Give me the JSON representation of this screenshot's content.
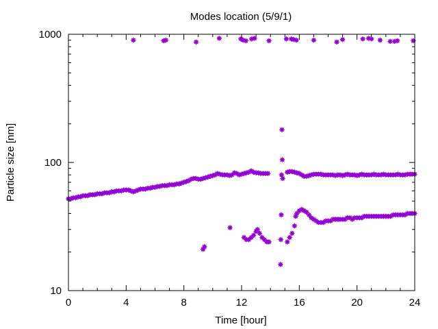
{
  "chart_data": {
    "type": "scatter",
    "title": "Modes location (5/9/1)",
    "xlabel": "Time [hour]",
    "ylabel": "Particle size [nm]",
    "xlim": [
      0,
      24
    ],
    "ylim": [
      10,
      1000
    ],
    "yscale": "log",
    "x_ticks": [
      "0",
      "4",
      "8",
      "12",
      "16",
      "20",
      "24"
    ],
    "y_ticks": [
      "10",
      "100",
      "1000"
    ],
    "grid": false,
    "legend": "none",
    "marker_color": "#9400d3",
    "series": [
      {
        "points": [
          [
            0.0,
            52
          ],
          [
            0.17,
            52
          ],
          [
            0.33,
            53
          ],
          [
            0.5,
            53
          ],
          [
            0.67,
            54
          ],
          [
            0.83,
            54
          ],
          [
            1.0,
            55
          ],
          [
            1.17,
            55
          ],
          [
            1.33,
            55
          ],
          [
            1.5,
            56
          ],
          [
            1.67,
            56
          ],
          [
            1.83,
            56
          ],
          [
            2.0,
            57
          ],
          [
            2.17,
            57
          ],
          [
            2.33,
            57
          ],
          [
            2.5,
            58
          ],
          [
            2.67,
            58
          ],
          [
            2.83,
            58
          ],
          [
            3.0,
            59
          ],
          [
            3.17,
            59
          ],
          [
            3.33,
            60
          ],
          [
            3.5,
            60
          ],
          [
            3.67,
            60
          ],
          [
            3.83,
            61
          ],
          [
            4.0,
            61
          ],
          [
            4.17,
            61
          ],
          [
            4.33,
            60
          ],
          [
            4.5,
            59
          ],
          [
            4.67,
            60
          ],
          [
            4.83,
            61
          ],
          [
            5.0,
            62
          ],
          [
            5.17,
            62
          ],
          [
            5.33,
            62
          ],
          [
            5.5,
            63
          ],
          [
            5.67,
            63
          ],
          [
            5.83,
            64
          ],
          [
            6.0,
            64
          ],
          [
            6.17,
            65
          ],
          [
            6.33,
            65
          ],
          [
            6.5,
            66
          ],
          [
            6.67,
            66
          ],
          [
            6.83,
            66
          ],
          [
            7.0,
            67
          ],
          [
            7.17,
            67
          ],
          [
            7.33,
            67
          ],
          [
            7.5,
            68
          ],
          [
            7.67,
            68
          ],
          [
            7.83,
            69
          ],
          [
            8.0,
            70
          ],
          [
            8.17,
            71
          ],
          [
            8.33,
            72
          ],
          [
            8.5,
            74
          ],
          [
            8.67,
            75
          ],
          [
            8.83,
            75
          ],
          [
            9.0,
            74
          ],
          [
            9.17,
            74
          ],
          [
            9.33,
            75
          ],
          [
            9.5,
            76
          ],
          [
            9.67,
            77
          ],
          [
            9.83,
            78
          ],
          [
            10.0,
            79
          ],
          [
            10.17,
            80
          ],
          [
            10.33,
            82
          ],
          [
            10.5,
            81
          ],
          [
            10.67,
            80
          ],
          [
            10.83,
            80
          ],
          [
            11.0,
            80
          ],
          [
            11.17,
            79
          ],
          [
            11.33,
            80
          ],
          [
            11.5,
            83
          ],
          [
            11.67,
            82
          ],
          [
            11.83,
            80
          ],
          [
            12.0,
            81
          ],
          [
            12.17,
            82
          ],
          [
            12.33,
            83
          ],
          [
            12.5,
            84
          ],
          [
            12.67,
            86
          ],
          [
            12.83,
            84
          ],
          [
            13.0,
            83
          ],
          [
            13.17,
            83
          ],
          [
            13.33,
            82
          ],
          [
            13.5,
            82
          ],
          [
            13.67,
            82
          ],
          [
            13.83,
            82
          ],
          [
            14.77,
            80
          ],
          [
            14.85,
            75
          ],
          [
            15.17,
            84
          ],
          [
            15.33,
            85
          ],
          [
            15.5,
            85
          ],
          [
            15.67,
            84
          ],
          [
            15.83,
            83
          ],
          [
            16.0,
            82
          ],
          [
            16.17,
            80
          ],
          [
            16.33,
            78
          ],
          [
            16.5,
            78
          ],
          [
            16.67,
            79
          ],
          [
            16.83,
            80
          ],
          [
            17.0,
            81
          ],
          [
            17.17,
            81
          ],
          [
            17.33,
            81
          ],
          [
            17.5,
            81
          ],
          [
            17.67,
            80
          ],
          [
            17.83,
            80
          ],
          [
            18.0,
            80
          ],
          [
            18.17,
            80
          ],
          [
            18.33,
            80
          ],
          [
            18.5,
            79
          ],
          [
            18.67,
            80
          ],
          [
            18.83,
            80
          ],
          [
            19.0,
            79
          ],
          [
            19.17,
            80
          ],
          [
            19.33,
            81
          ],
          [
            19.5,
            80
          ],
          [
            19.67,
            80
          ],
          [
            19.83,
            80
          ],
          [
            20.0,
            79
          ],
          [
            20.17,
            80
          ],
          [
            20.33,
            81
          ],
          [
            20.5,
            80
          ],
          [
            20.67,
            80
          ],
          [
            20.83,
            80
          ],
          [
            21.0,
            80
          ],
          [
            21.17,
            81
          ],
          [
            21.33,
            80
          ],
          [
            21.5,
            80
          ],
          [
            21.67,
            80
          ],
          [
            21.83,
            81
          ],
          [
            22.0,
            80
          ],
          [
            22.17,
            80
          ],
          [
            22.33,
            80
          ],
          [
            22.5,
            80
          ],
          [
            22.67,
            80
          ],
          [
            22.83,
            81
          ],
          [
            23.0,
            80
          ],
          [
            23.17,
            80
          ],
          [
            23.33,
            80
          ],
          [
            23.5,
            81
          ],
          [
            23.67,
            81
          ],
          [
            23.83,
            81
          ],
          [
            24.0,
            81
          ],
          [
            9.33,
            21
          ],
          [
            9.43,
            22
          ],
          [
            11.2,
            31
          ],
          [
            12.17,
            26
          ],
          [
            12.33,
            25
          ],
          [
            12.5,
            25
          ],
          [
            12.67,
            26
          ],
          [
            12.83,
            27
          ],
          [
            13.0,
            29
          ],
          [
            13.1,
            30
          ],
          [
            13.25,
            28
          ],
          [
            13.42,
            26
          ],
          [
            13.58,
            25
          ],
          [
            13.75,
            24
          ],
          [
            13.9,
            24
          ],
          [
            14.7,
            16
          ],
          [
            14.72,
            25
          ],
          [
            14.75,
            39
          ],
          [
            14.8,
            180
          ],
          [
            14.82,
            105
          ],
          [
            15.17,
            24
          ],
          [
            15.33,
            26
          ],
          [
            15.5,
            28
          ],
          [
            15.67,
            32
          ],
          [
            15.75,
            38
          ],
          [
            15.83,
            40
          ],
          [
            16.0,
            42
          ],
          [
            16.17,
            43
          ],
          [
            16.33,
            42
          ],
          [
            16.5,
            41
          ],
          [
            16.67,
            39
          ],
          [
            16.83,
            37
          ],
          [
            17.0,
            36
          ],
          [
            17.17,
            35
          ],
          [
            17.33,
            34
          ],
          [
            17.5,
            34
          ],
          [
            17.67,
            34
          ],
          [
            17.83,
            35
          ],
          [
            18.0,
            35
          ],
          [
            18.17,
            35
          ],
          [
            18.33,
            36
          ],
          [
            18.5,
            36
          ],
          [
            18.67,
            36
          ],
          [
            18.83,
            36
          ],
          [
            19.0,
            36
          ],
          [
            19.17,
            36
          ],
          [
            19.33,
            37
          ],
          [
            19.5,
            37
          ],
          [
            19.67,
            36
          ],
          [
            19.83,
            37
          ],
          [
            20.0,
            37
          ],
          [
            20.17,
            37
          ],
          [
            20.33,
            37
          ],
          [
            20.5,
            38
          ],
          [
            20.67,
            38
          ],
          [
            20.83,
            38
          ],
          [
            21.0,
            38
          ],
          [
            21.17,
            38
          ],
          [
            21.33,
            38
          ],
          [
            21.5,
            38
          ],
          [
            21.67,
            38
          ],
          [
            21.83,
            38
          ],
          [
            22.0,
            38
          ],
          [
            22.17,
            38
          ],
          [
            22.33,
            38
          ],
          [
            22.5,
            39
          ],
          [
            22.67,
            39
          ],
          [
            22.83,
            39
          ],
          [
            23.0,
            39
          ],
          [
            23.17,
            39
          ],
          [
            23.33,
            39
          ],
          [
            23.5,
            40
          ],
          [
            23.67,
            40
          ],
          [
            23.83,
            40
          ],
          [
            24.0,
            40
          ],
          [
            4.5,
            900
          ],
          [
            6.6,
            890
          ],
          [
            6.75,
            900
          ],
          [
            8.85,
            870
          ],
          [
            10.45,
            930
          ],
          [
            11.95,
            920
          ],
          [
            12.1,
            900
          ],
          [
            12.3,
            890
          ],
          [
            12.7,
            920
          ],
          [
            12.9,
            930
          ],
          [
            13.9,
            890
          ],
          [
            15.1,
            920
          ],
          [
            15.45,
            920
          ],
          [
            15.6,
            910
          ],
          [
            15.8,
            900
          ],
          [
            17.0,
            900
          ],
          [
            18.6,
            870
          ],
          [
            19.0,
            910
          ],
          [
            20.4,
            920
          ],
          [
            20.8,
            930
          ],
          [
            21.0,
            920
          ],
          [
            21.6,
            900
          ],
          [
            22.3,
            880
          ],
          [
            22.6,
            880
          ],
          [
            22.8,
            890
          ],
          [
            23.9,
            890
          ]
        ]
      }
    ]
  }
}
